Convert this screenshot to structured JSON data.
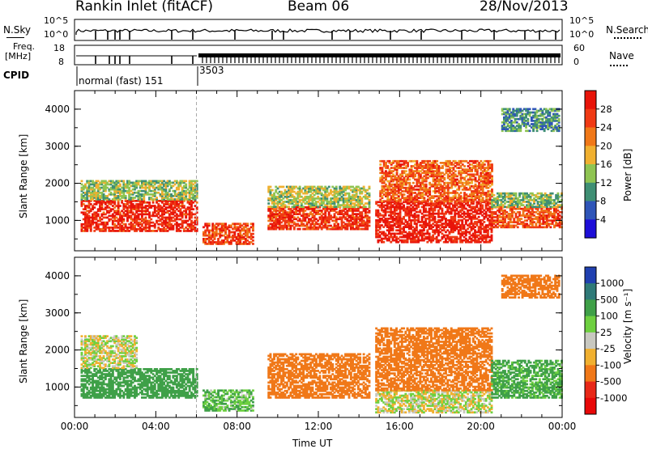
{
  "header": {
    "station": "Rankin Inlet (fitACF)",
    "beam": "Beam 06",
    "date": "28/Nov/2013"
  },
  "strip_panels": {
    "nsky": {
      "label": "N.Sky",
      "ticks": [
        "10^5",
        "10^0"
      ]
    },
    "nsearch": {
      "label": "N.Search",
      "ticks": [
        "10^5",
        "10^0"
      ]
    },
    "freq": {
      "label_line1": "Freq.",
      "label_line2": "[MHz]",
      "ticks": [
        "18",
        "8"
      ]
    },
    "nave": {
      "label": "Nave",
      "ticks": [
        "60",
        "0"
      ]
    },
    "cpid": {
      "label": "CPID",
      "segments": [
        {
          "text": "normal (fast) 151"
        },
        {
          "text": "3503"
        }
      ]
    }
  },
  "chart_data": [
    {
      "type": "heatmap",
      "name": "power",
      "ylabel": "Slant Range [km]",
      "xlabel": "",
      "ylim": [
        180,
        4500
      ],
      "y_ticks": [
        "1000",
        "2000",
        "3000",
        "4000"
      ],
      "x_ticks": [
        "00:00",
        "04:00",
        "08:00",
        "12:00",
        "16:00",
        "20:00",
        "00:00"
      ],
      "colorbar": {
        "label": "Power [dB]",
        "tick_labels": [
          "4",
          "8",
          "12",
          "16",
          "20",
          "24",
          "28"
        ],
        "colors": [
          "#1e0fd8",
          "#2f55b8",
          "#3f8f74",
          "#8fc452",
          "#f0b030",
          "#f07818",
          "#f03a14",
          "#e8140a"
        ]
      },
      "regions": [
        {
          "t": [
            0.3,
            6.0
          ],
          "r": [
            700,
            1550
          ],
          "value": 28
        },
        {
          "t": [
            0.3,
            6.0
          ],
          "r": [
            1550,
            2050
          ],
          "value": 14
        },
        {
          "t": [
            6.3,
            8.8
          ],
          "r": [
            350,
            900
          ],
          "value": 26
        },
        {
          "t": [
            9.5,
            14.5
          ],
          "r": [
            750,
            1350
          ],
          "value": 27
        },
        {
          "t": [
            9.5,
            14.5
          ],
          "r": [
            1350,
            1900
          ],
          "value": 15
        },
        {
          "t": [
            14.8,
            20.5
          ],
          "r": [
            400,
            1500
          ],
          "value": 29
        },
        {
          "t": [
            15.0,
            20.5
          ],
          "r": [
            1500,
            2600
          ],
          "value": 24
        },
        {
          "t": [
            20.5,
            24.0
          ],
          "r": [
            800,
            1350
          ],
          "value": 25
        },
        {
          "t": [
            20.5,
            24.0
          ],
          "r": [
            1350,
            1750
          ],
          "value": 13
        },
        {
          "t": [
            21.0,
            23.8
          ],
          "r": [
            3400,
            4000
          ],
          "value": 10
        }
      ]
    },
    {
      "type": "heatmap",
      "name": "velocity",
      "ylabel": "Slant Range [km]",
      "xlabel": "Time UT",
      "ylim": [
        180,
        4500
      ],
      "y_ticks": [
        "1000",
        "2000",
        "3000",
        "4000"
      ],
      "x_ticks": [
        "00:00",
        "04:00",
        "08:00",
        "12:00",
        "16:00",
        "20:00",
        "00:00"
      ],
      "colorbar": {
        "label": "Velocity [m s⁻¹]",
        "tick_labels": [
          "1000",
          "500",
          "100",
          "25",
          "-25",
          "-100",
          "-500",
          "-1000"
        ],
        "colors": [
          "#2040b0",
          "#2f7a78",
          "#3fa048",
          "#6ed040",
          "#c8c8c0",
          "#f0b030",
          "#f07818",
          "#e82818",
          "#e80808"
        ]
      },
      "regions": [
        {
          "t": [
            0.3,
            6.0
          ],
          "r": [
            700,
            1500
          ],
          "value": 200
        },
        {
          "t": [
            0.3,
            3.0
          ],
          "r": [
            1500,
            2400
          ],
          "value": 0
        },
        {
          "t": [
            6.3,
            8.8
          ],
          "r": [
            350,
            900
          ],
          "value": 100
        },
        {
          "t": [
            9.5,
            14.5
          ],
          "r": [
            700,
            1900
          ],
          "value": -300
        },
        {
          "t": [
            14.8,
            20.5
          ],
          "r": [
            300,
            900
          ],
          "value": 0
        },
        {
          "t": [
            14.8,
            20.5
          ],
          "r": [
            900,
            2600
          ],
          "value": -300
        },
        {
          "t": [
            20.5,
            24.0
          ],
          "r": [
            700,
            1700
          ],
          "value": 150
        },
        {
          "t": [
            21.0,
            23.8
          ],
          "r": [
            3400,
            4000
          ],
          "value": -300
        }
      ]
    }
  ]
}
